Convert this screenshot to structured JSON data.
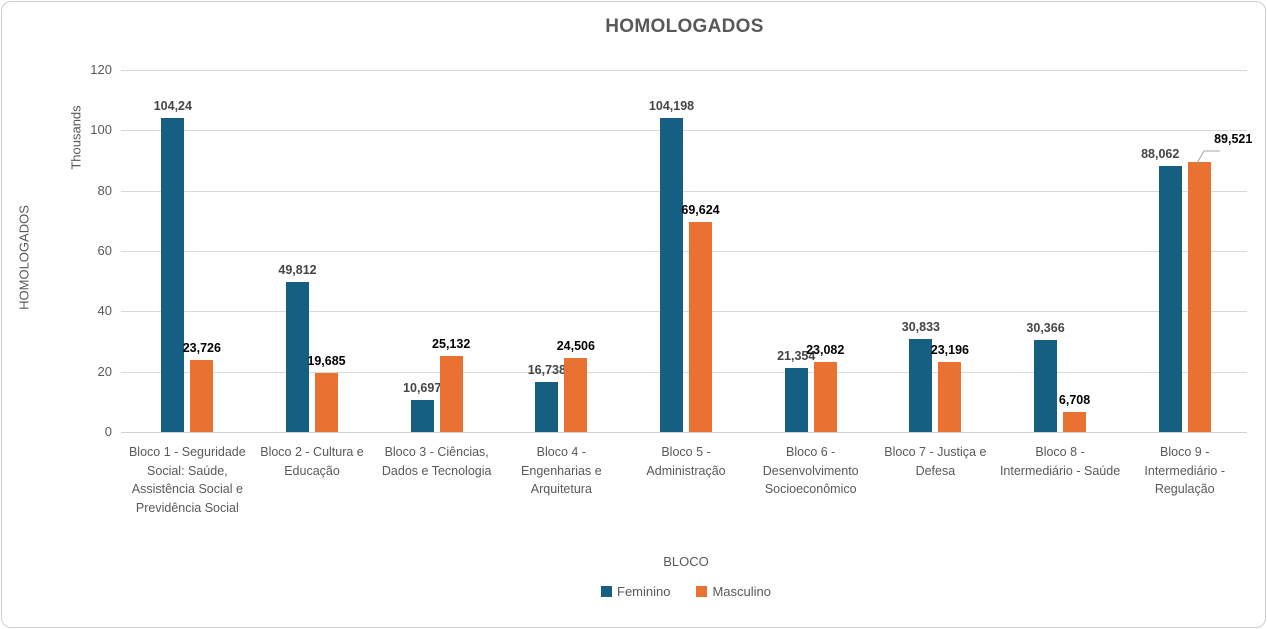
{
  "chart_data": {
    "type": "bar",
    "title": "HOMOLOGADOS",
    "xlabel": "BLOCO",
    "ylabel": "HOMOLOGADOS",
    "y_units_label": "Thousands",
    "ylim": [
      0,
      120
    ],
    "yticks": [
      0,
      20,
      40,
      60,
      80,
      100,
      120
    ],
    "grid": true,
    "legend_position": "bottom",
    "colors": {
      "feminino": "#156082",
      "masculino": "#E97132",
      "axis_text": "#595959",
      "gridline": "#D9D9D9",
      "feminino_label": "#454545",
      "masculino_label": "#000000"
    },
    "categories": [
      "Bloco 1 - Seguridade Social: Saúde, Assistência Social e Previdência Social",
      "Bloco 2 - Cultura e Educação",
      "Bloco 3 - Ciências, Dados e Tecnologia",
      "Bloco 4 - Engenharias e Arquitetura",
      "Bloco 5 - Administração",
      "Bloco 6 - Desenvolvimento Socioeconômico",
      "Bloco 7 - Justiça e Defesa",
      "Bloco 8 - Intermediário - Saúde",
      "Bloco 9 - Intermediário - Regulação"
    ],
    "series": [
      {
        "name": "Feminino",
        "color": "#156082",
        "label_color": "#454545",
        "values": [
          104.24,
          49.812,
          10.697,
          16.738,
          104.198,
          21.354,
          30.833,
          30.366,
          88.062
        ],
        "labels": [
          "104,24",
          "49,812",
          "10,697",
          "16,738",
          "104,198",
          "21,354",
          "30,833",
          "30,366",
          "88,062"
        ]
      },
      {
        "name": "Masculino",
        "color": "#E97132",
        "label_color": "#000000",
        "values": [
          23.726,
          19.685,
          25.132,
          24.506,
          69.624,
          23.082,
          23.196,
          6.708,
          89.521
        ],
        "labels": [
          "23,726",
          "19,685",
          "25,132",
          "24,506",
          "69,624",
          "23,082",
          "23,196",
          "6,708",
          "89,521"
        ]
      }
    ]
  }
}
